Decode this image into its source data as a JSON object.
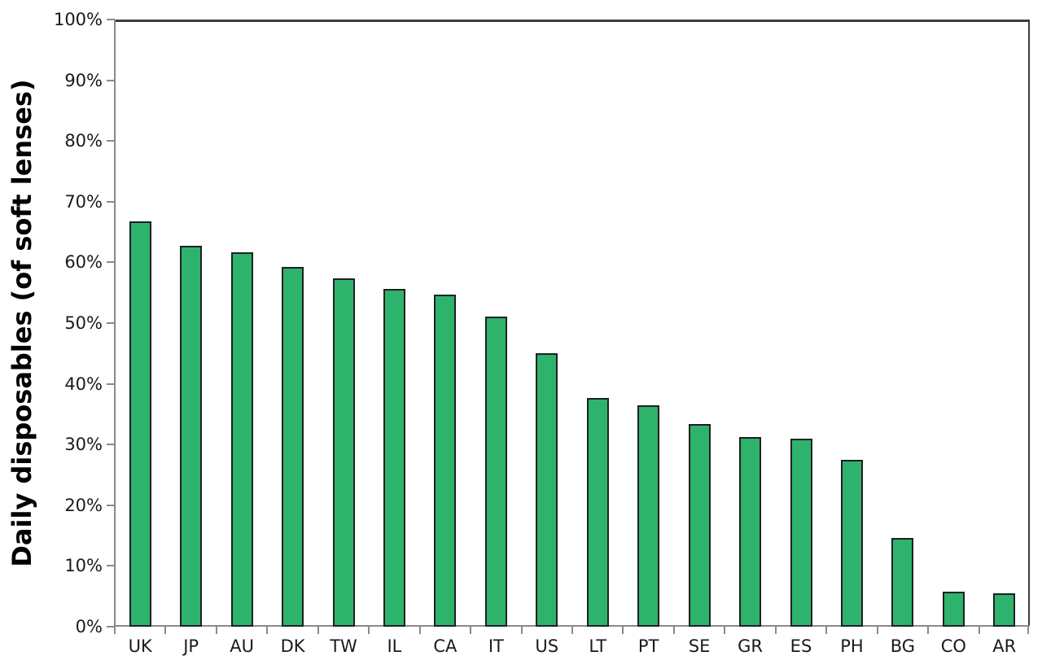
{
  "page": {
    "background": "#ffffff"
  },
  "chart_data": {
    "type": "bar",
    "title": "",
    "xlabel": "",
    "ylabel": "Daily disposables (of soft lenses)",
    "categories": [
      "UK",
      "JP",
      "AU",
      "DK",
      "TW",
      "IL",
      "CA",
      "IT",
      "US",
      "LT",
      "PT",
      "SE",
      "GR",
      "ES",
      "PH",
      "BG",
      "CO",
      "AR"
    ],
    "values": [
      66.7,
      62.7,
      61.7,
      59.2,
      57.4,
      55.6,
      54.7,
      51.1,
      45.0,
      37.7,
      36.5,
      33.4,
      31.2,
      31.0,
      27.5,
      14.6,
      5.8,
      5.5
    ],
    "ylim": [
      0,
      100
    ],
    "ytick_step": 10,
    "ytick_labels": [
      "0%",
      "10%",
      "20%",
      "30%",
      "40%",
      "50%",
      "60%",
      "70%",
      "80%",
      "90%",
      "100%"
    ],
    "grid": false,
    "legend": "none",
    "bar_color": "#2eb36c",
    "bar_border_color": "#1f1f1f",
    "axis_color": "#8a8a8a",
    "frame_color": "#3d3d3d",
    "text_color": "#1a1a1a"
  }
}
